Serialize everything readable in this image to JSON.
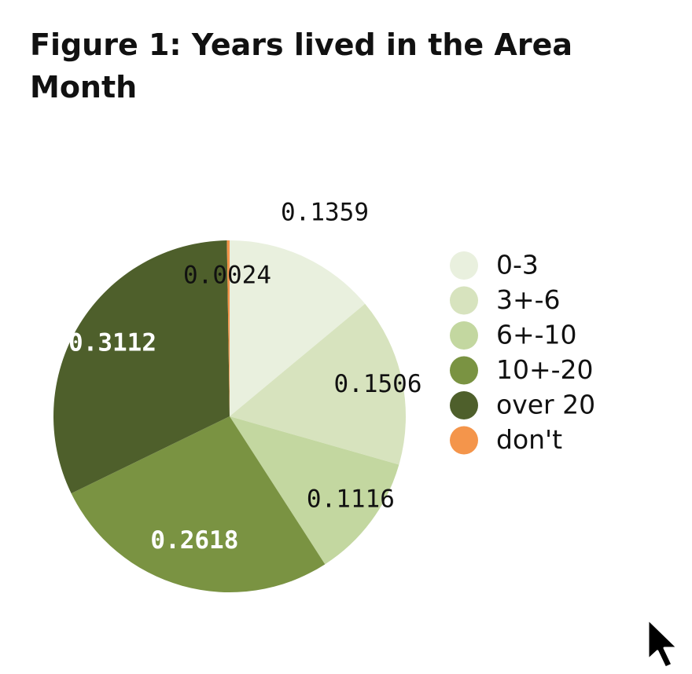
{
  "title_line1": "Figure 1: Years lived in the Area",
  "title_line2": "Month",
  "chart_data": {
    "type": "pie",
    "slices": [
      {
        "label": "0-3",
        "value": 0.1359,
        "color": "#E9F0DE"
      },
      {
        "label": "3+-6",
        "value": 0.1506,
        "color": "#D7E3BE"
      },
      {
        "label": "6+-10",
        "value": 0.1116,
        "color": "#C3D7A0"
      },
      {
        "label": "10+-20",
        "value": 0.2618,
        "color": "#7A9342"
      },
      {
        "label": "over 20",
        "value": 0.3112,
        "color": "#4E5F2B"
      },
      {
        "label": "don't",
        "value": 0.0024,
        "color": "#F4954B"
      }
    ],
    "legend_position": "right",
    "data_labels": true
  },
  "cursor_icon": "arrow-pointer-icon"
}
